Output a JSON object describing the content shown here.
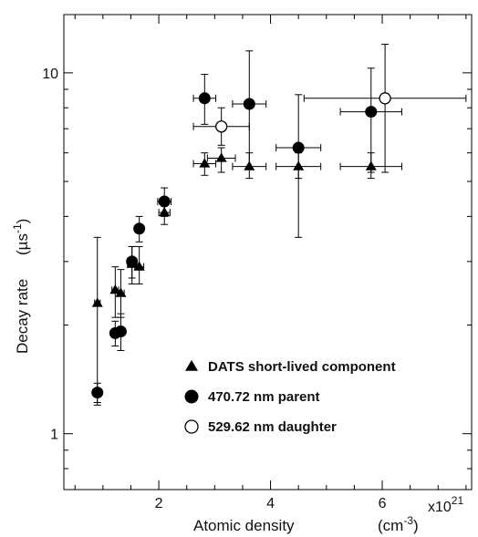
{
  "chart_data": {
    "type": "scatter",
    "xlabel": "Atomic density",
    "xunit": "(cm",
    "xunit_exp": "-3",
    "xunit_close": ")",
    "x_multiplier": "x10",
    "x_multiplier_exp": "21",
    "ylabel": "Decay rate",
    "yunit_open": "(µs",
    "yunit_exp": "-1",
    "yunit_close": ")",
    "xlim": [
      3e+20,
      7.6e+21
    ],
    "ylim": [
      0.7,
      14.5
    ],
    "yscale": "log",
    "x_ticks": [
      2e+21,
      4e+21,
      6e+21
    ],
    "x_tick_labels": [
      "2",
      "4",
      "6"
    ],
    "y_ticks": [
      1,
      10
    ],
    "y_tick_labels": [
      "1",
      "10"
    ],
    "legend_position": "bottom-right",
    "grid": false,
    "series": [
      {
        "name": "DATS short-lived component",
        "marker": "triangle",
        "fill": "#000000",
        "points": [
          {
            "x": 9e+20,
            "y": 2.3,
            "xerr": 5e+19,
            "ylo": 1.2,
            "yhi": 3.5
          },
          {
            "x": 1.22e+21,
            "y": 2.5,
            "xerr": 6e+19,
            "ylo": 2.1,
            "yhi": 2.9
          },
          {
            "x": 1.32e+21,
            "y": 2.45,
            "xerr": 6e+19,
            "ylo": 2.1,
            "yhi": 2.85
          },
          {
            "x": 1.52e+21,
            "y": 2.95,
            "xerr": 8e+19,
            "ylo": 2.6,
            "yhi": 3.3
          },
          {
            "x": 1.65e+21,
            "y": 2.9,
            "xerr": 8e+19,
            "ylo": 2.6,
            "yhi": 3.3
          },
          {
            "x": 2.1e+21,
            "y": 4.1,
            "xerr": 1e+20,
            "ylo": 3.8,
            "yhi": 4.4
          },
          {
            "x": 2.82e+21,
            "y": 5.6,
            "xerr": 2e+20,
            "ylo": 5.2,
            "yhi": 6.0
          },
          {
            "x": 3.12e+21,
            "y": 5.8,
            "xerr": 2.5e+20,
            "ylo": 5.3,
            "yhi": 6.2
          },
          {
            "x": 3.62e+21,
            "y": 5.5,
            "xerr": 3e+20,
            "ylo": 5.1,
            "yhi": 6.0
          },
          {
            "x": 4.5e+21,
            "y": 5.5,
            "xerr": 4e+20,
            "ylo": 5.1,
            "yhi": 6.0
          },
          {
            "x": 5.8e+21,
            "y": 5.5,
            "xerr": 5.5e+20,
            "ylo": 5.1,
            "yhi": 6.0
          }
        ]
      },
      {
        "name": "470.72 nm parent",
        "marker": "circle",
        "fill": "#000000",
        "points": [
          {
            "x": 9e+20,
            "y": 1.3,
            "xerr": 5e+19,
            "ylo": 1.22,
            "yhi": 1.38
          },
          {
            "x": 1.22e+21,
            "y": 1.9,
            "xerr": 6e+19,
            "ylo": 1.75,
            "yhi": 2.05
          },
          {
            "x": 1.32e+21,
            "y": 1.92,
            "xerr": 6e+19,
            "ylo": 1.7,
            "yhi": 2.15
          },
          {
            "x": 1.52e+21,
            "y": 3.0,
            "xerr": 8e+19,
            "ylo": 2.7,
            "yhi": 3.3
          },
          {
            "x": 1.65e+21,
            "y": 3.7,
            "xerr": 8e+19,
            "ylo": 3.4,
            "yhi": 4.0
          },
          {
            "x": 2.1e+21,
            "y": 4.4,
            "xerr": 1.2e+20,
            "ylo": 4.0,
            "yhi": 4.8
          },
          {
            "x": 2.82e+21,
            "y": 8.5,
            "xerr": 2e+20,
            "ylo": 7.2,
            "yhi": 9.9
          },
          {
            "x": 3.62e+21,
            "y": 8.2,
            "xerr": 3e+20,
            "ylo": 5.4,
            "yhi": 11.5
          },
          {
            "x": 4.5e+21,
            "y": 6.2,
            "xerr": 4e+20,
            "ylo": 3.5,
            "yhi": 8.7
          },
          {
            "x": 5.8e+21,
            "y": 7.8,
            "xerr": 5.5e+20,
            "ylo": 5.3,
            "yhi": 10.3
          }
        ]
      },
      {
        "name": "529.62 nm daughter",
        "marker": "circle-open",
        "fill": "#ffffff",
        "points": [
          {
            "x": 3.12e+21,
            "y": 7.1,
            "xerr": 5e+20,
            "ylo": 6.3,
            "yhi": 8.0
          },
          {
            "x": 6.05e+21,
            "y": 8.5,
            "xerr": 1.45e+21,
            "ylo": 5.3,
            "yhi": 12.0
          }
        ]
      }
    ]
  }
}
